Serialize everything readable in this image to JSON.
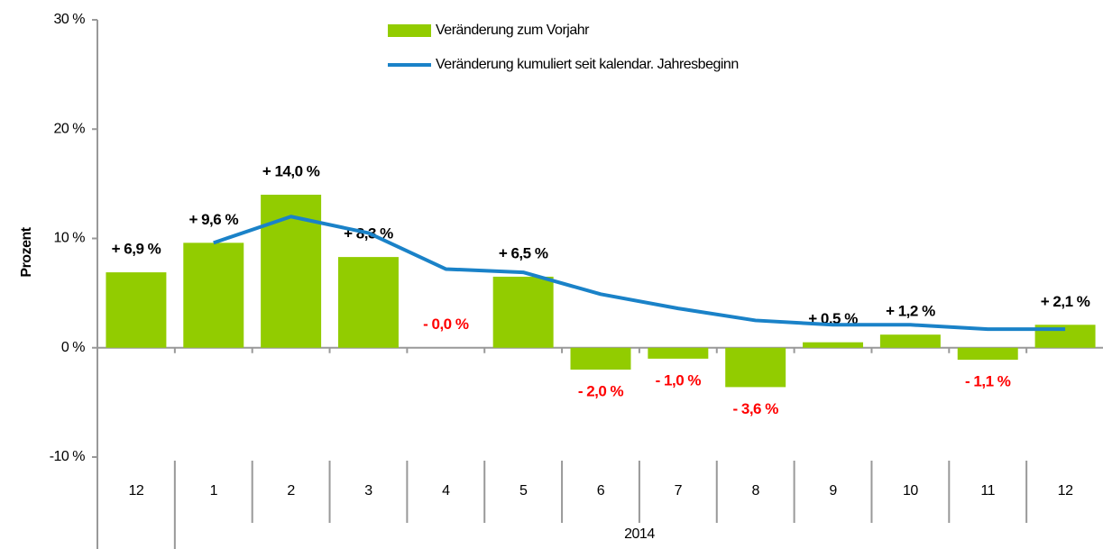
{
  "chart_data": {
    "type": "bar",
    "y_label": "Prozent",
    "categories": [
      "12",
      "1",
      "2",
      "3",
      "4",
      "5",
      "6",
      "7",
      "8",
      "9",
      "10",
      "11",
      "12"
    ],
    "group_label": "2014",
    "series": [
      {
        "name": "Veränderung zum Vorjahr",
        "type": "bar",
        "color": "#92cc00",
        "values": [
          6.9,
          9.6,
          14.0,
          8.3,
          0,
          6.5,
          -2.0,
          -1.0,
          -3.6,
          0.5,
          1.2,
          -1.1,
          2.1
        ],
        "value_labels": [
          "+ 6,9 %",
          "+ 9,6 %",
          "+ 14,0 %",
          "+ 8,3 %",
          "- 0,0 %",
          "+ 6,5 %",
          "- 2,0 %",
          "- 1,0 %",
          "- 3,6 %",
          "+ 0,5 %",
          "+ 1,2 %",
          "- 1,1 %",
          "+ 2,1 %"
        ]
      },
      {
        "name": "Veränderung kumuliert seit kalendar. Jahresbeginn",
        "type": "line",
        "color": "#1a82c8",
        "values": [
          null,
          9.6,
          12.0,
          10.5,
          7.2,
          6.9,
          4.9,
          3.6,
          2.5,
          2.1,
          2.1,
          1.7,
          1.7
        ]
      }
    ],
    "label_colors": {
      "positive": "#000000",
      "negative": "#ff0000"
    },
    "ylim": [
      -10,
      30
    ],
    "yticks": [
      {
        "value": -10,
        "label": "-10 %"
      },
      {
        "value": 0,
        "label": "0 %"
      },
      {
        "value": 10,
        "label": "10 %"
      },
      {
        "value": 20,
        "label": "20 %"
      },
      {
        "value": 30,
        "label": "30 %"
      }
    ],
    "grid": false
  }
}
